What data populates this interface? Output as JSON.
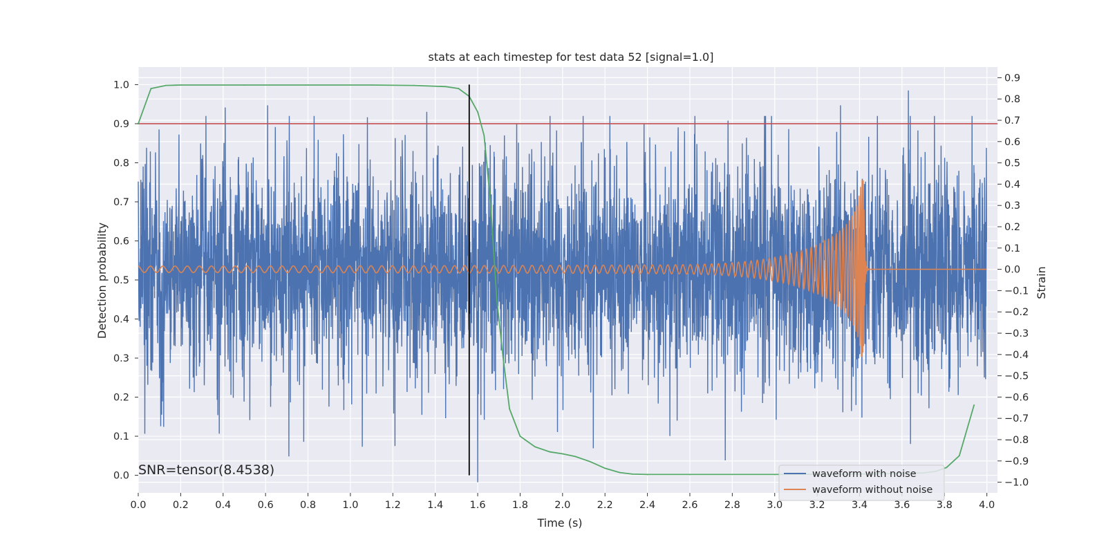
{
  "chart_data": {
    "type": "line",
    "title": "stats at each timestep for test data 52 [signal=1.0]",
    "xlabel": "Time (s)",
    "ylabel_left": "Detection probability",
    "ylabel_right": "Strain",
    "xlim": [
      0.0,
      4.05
    ],
    "ylim_left": [
      -0.045,
      1.045
    ],
    "ylim_right": [
      -1.05,
      0.95
    ],
    "x_ticks": [
      "0.0",
      "0.2",
      "0.4",
      "0.6",
      "0.8",
      "1.0",
      "1.2",
      "1.4",
      "1.6",
      "1.8",
      "2.0",
      "2.2",
      "2.4",
      "2.6",
      "2.8",
      "3.0",
      "3.2",
      "3.4",
      "3.6",
      "3.8",
      "4.0"
    ],
    "y_left_ticks": [
      "0.0",
      "0.1",
      "0.2",
      "0.3",
      "0.4",
      "0.5",
      "0.6",
      "0.7",
      "0.8",
      "0.9",
      "1.0"
    ],
    "y_right_ticks": [
      "0.9",
      "0.8",
      "0.7",
      "0.6",
      "0.5",
      "0.4",
      "0.3",
      "0.2",
      "0.1",
      "0.0",
      "−0.1",
      "−0.2",
      "−0.3",
      "−0.4",
      "−0.5",
      "−0.6",
      "−0.7",
      "−0.8",
      "−0.9",
      "−1.0"
    ],
    "grid": true,
    "legend_position": "lower-right",
    "threshold": {
      "value": 0.9,
      "axis": "left",
      "color": "#c44e52"
    },
    "marker_line": {
      "x": 1.56,
      "y_from": 0.0,
      "y_to": 1.0,
      "color": "#000000"
    },
    "annotation": "SNR=tensor(8.4538)",
    "series": [
      {
        "name": "detection probability",
        "axis": "left",
        "color": "#55a868",
        "in_legend": false,
        "x": [
          0.0,
          0.06,
          0.13,
          0.2,
          0.5,
          0.8,
          1.1,
          1.3,
          1.45,
          1.51,
          1.56,
          1.6,
          1.63,
          1.66,
          1.69,
          1.72,
          1.75,
          1.8,
          1.87,
          1.94,
          2.0,
          2.06,
          2.13,
          2.2,
          2.27,
          2.33,
          2.4,
          2.6,
          3.0,
          3.4,
          3.7,
          3.76,
          3.81,
          3.87,
          3.94
        ],
        "values": [
          0.9,
          0.99,
          0.998,
          0.999,
          0.999,
          0.999,
          0.999,
          0.998,
          0.995,
          0.99,
          0.97,
          0.93,
          0.87,
          0.7,
          0.45,
          0.3,
          0.17,
          0.1,
          0.073,
          0.06,
          0.055,
          0.048,
          0.035,
          0.018,
          0.007,
          0.003,
          0.002,
          0.002,
          0.002,
          0.003,
          0.006,
          0.01,
          0.02,
          0.05,
          0.18
        ]
      },
      {
        "name": "waveform with noise",
        "axis": "right",
        "color": "#4c72b0",
        "in_legend": true,
        "description": "white noise, std ~0.25 strain, 4 s at ~1000 Hz",
        "peaks": [
          {
            "x": 0.41,
            "y": 0.76
          },
          {
            "x": 0.61,
            "y": 0.77
          },
          {
            "x": 1.36,
            "y": 0.74
          },
          {
            "x": 3.31,
            "y": 0.77
          },
          {
            "x": 3.63,
            "y": 0.84
          },
          {
            "x": 3.93,
            "y": 0.72
          },
          {
            "x": 1.6,
            "y": -1.0
          },
          {
            "x": 0.78,
            "y": -0.81
          },
          {
            "x": 1.21,
            "y": -0.83
          },
          {
            "x": 3.64,
            "y": -0.82
          },
          {
            "x": 0.12,
            "y": -0.74
          }
        ]
      },
      {
        "name": "waveform without noise",
        "axis": "right",
        "color": "#dd8452",
        "in_legend": true,
        "description": "chirp, merger at t≈3.42 s, then ringdown to 0",
        "amplitude_start": 0.015,
        "amplitude_peak": 0.42,
        "merger_time": 3.42,
        "frequency_start_hz": 17
      }
    ]
  }
}
